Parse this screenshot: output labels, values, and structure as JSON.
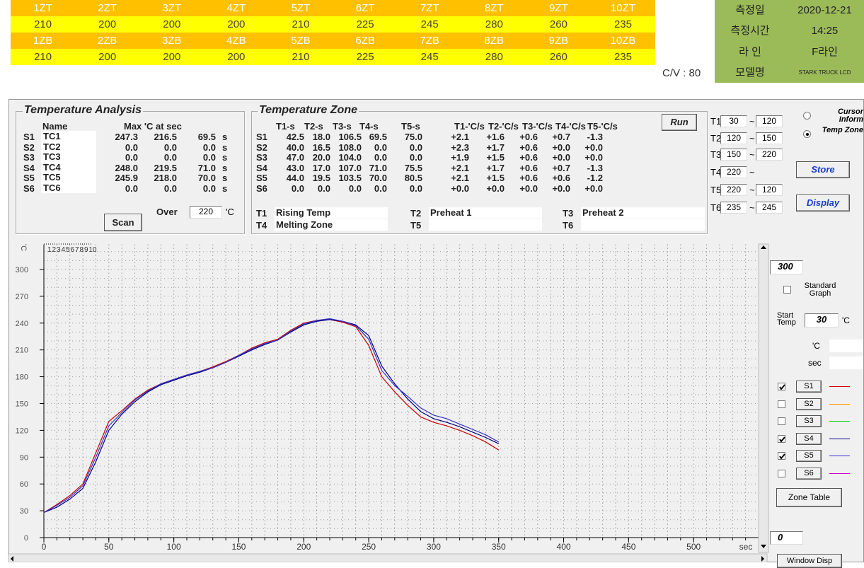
{
  "zone_table": {
    "rows": [
      [
        "1ZT",
        "2ZT",
        "3ZT",
        "4ZT",
        "5ZT",
        "6ZT",
        "7ZT",
        "8ZT",
        "9ZT",
        "10ZT"
      ],
      [
        210,
        200,
        200,
        200,
        210,
        225,
        245,
        280,
        260,
        235
      ],
      [
        "1ZB",
        "2ZB",
        "3ZB",
        "4ZB",
        "5ZB",
        "6ZB",
        "7ZB",
        "8ZB",
        "9ZB",
        "10ZB"
      ],
      [
        210,
        200,
        200,
        200,
        210,
        225,
        245,
        280,
        260,
        235
      ]
    ],
    "cv_label": "C/V : 80"
  },
  "info": [
    [
      "측정일",
      "2020-12-21"
    ],
    [
      "측정시간",
      "14:25"
    ],
    [
      "라 인",
      "F라인"
    ],
    [
      "모델명",
      "STARK TRUCK LCD"
    ]
  ],
  "analysis": {
    "title": "Temperature Analysis",
    "headers": [
      "Name",
      "Max 'C at sec"
    ],
    "rows": [
      [
        "S1",
        "TC1",
        "247.3",
        "216.5",
        "69.5"
      ],
      [
        "S2",
        "TC2",
        "0.0",
        "0.0",
        "0.0"
      ],
      [
        "S3",
        "TC3",
        "0.0",
        "0.0",
        "0.0"
      ],
      [
        "S4",
        "TC4",
        "248.0",
        "219.5",
        "71.0"
      ],
      [
        "S5",
        "TC5",
        "245.9",
        "218.0",
        "70.0"
      ],
      [
        "S6",
        "TC6",
        "0.0",
        "0.0",
        "0.0"
      ]
    ],
    "sec_unit": "s",
    "scan_button": "Scan",
    "over_label": "Over",
    "over_value": "220",
    "over_unit": "'C"
  },
  "zone": {
    "title": "Temperature Zone",
    "headers": [
      "T1-s",
      "T2-s",
      "T3-s",
      "T4-s",
      "T5-s",
      "T1-'C/s",
      "T2-'C/s",
      "T3-'C/s",
      "T4-'C/s",
      "T5-'C/s"
    ],
    "rows": [
      [
        "S1",
        "42.5",
        "18.0",
        "106.5",
        "69.5",
        "75.0",
        "+2.1",
        "+1.6",
        "+0.6",
        "+0.7",
        "-1.3"
      ],
      [
        "S2",
        "40.0",
        "16.5",
        "108.0",
        "0.0",
        "0.0",
        "+2.3",
        "+1.7",
        "+0.6",
        "+0.0",
        "+0.0"
      ],
      [
        "S3",
        "47.0",
        "20.0",
        "104.0",
        "0.0",
        "0.0",
        "+1.9",
        "+1.5",
        "+0.6",
        "+0.0",
        "+0.0"
      ],
      [
        "S4",
        "43.0",
        "17.0",
        "107.0",
        "71.0",
        "75.5",
        "+2.1",
        "+1.7",
        "+0.6",
        "+0.7",
        "-1.3"
      ],
      [
        "S5",
        "44.0",
        "19.5",
        "103.5",
        "70.0",
        "80.5",
        "+2.1",
        "+1.5",
        "+0.6",
        "+0.6",
        "-1.2"
      ],
      [
        "S6",
        "0.0",
        "0.0",
        "0.0",
        "0.0",
        "0.0",
        "+0.0",
        "+0.0",
        "+0.0",
        "+0.0",
        "+0.0"
      ]
    ],
    "names": [
      [
        "T1",
        "Rising Temp"
      ],
      [
        "T2",
        "Preheat 1"
      ],
      [
        "T3",
        "Preheat 2"
      ],
      [
        "T4",
        "Melting Zone"
      ],
      [
        "T5"
      ],
      [
        "T6"
      ]
    ],
    "run_button": "Run"
  },
  "ranges": {
    "sep": "~",
    "rows": [
      [
        "T1",
        "30",
        "120"
      ],
      [
        "T2",
        "120",
        "150"
      ],
      [
        "T3",
        "150",
        "220"
      ],
      [
        "T4",
        "220"
      ],
      [
        "T5",
        "220",
        "120"
      ],
      [
        "T6",
        "235",
        "245"
      ]
    ]
  },
  "radios": [
    {
      "label": "Cursor Inform",
      "checked": false
    },
    {
      "label": "Temp Zone",
      "checked": true
    }
  ],
  "buttons": {
    "store": "Store",
    "display": "Display",
    "zone_table": "Zone Table",
    "window": "Window Disp"
  },
  "side": {
    "max_value": "300",
    "standard_graph": "Standard Graph",
    "start_temp_label": "Start Temp",
    "start_temp": "30",
    "start_unit": "'C",
    "cursor_c": "'C",
    "cursor_sec": "sec",
    "min_value": "0"
  },
  "chart_data": {
    "type": "line",
    "x_label": "sec",
    "y_label": "'C",
    "zone_markers": [
      "1",
      "2",
      "3",
      "4",
      "5",
      "6",
      "7",
      "8",
      "9",
      "10"
    ],
    "x": [
      0,
      10,
      20,
      30,
      40,
      50,
      60,
      70,
      80,
      90,
      100,
      110,
      120,
      130,
      140,
      150,
      160,
      170,
      180,
      190,
      200,
      210,
      220,
      230,
      240,
      250,
      260,
      270,
      280,
      290,
      300,
      310,
      320,
      330,
      340,
      350
    ],
    "series": [
      {
        "name": "S1",
        "color": "#cc0000",
        "visible": true,
        "values": [
          28,
          37,
          47,
          60,
          95,
          130,
          142,
          155,
          165,
          172,
          177,
          182,
          186,
          191,
          197,
          204,
          212,
          218,
          222,
          232,
          240,
          243,
          244,
          241,
          236,
          215,
          180,
          163,
          148,
          135,
          129,
          125,
          120,
          114,
          107,
          98
        ]
      },
      {
        "name": "S2",
        "color": "#ff9900",
        "visible": false
      },
      {
        "name": "S3",
        "color": "#00cc00",
        "visible": false
      },
      {
        "name": "S4",
        "color": "#000080",
        "visible": true,
        "values": [
          28,
          34,
          43,
          55,
          85,
          120,
          138,
          152,
          163,
          171,
          176,
          181,
          185,
          190,
          196,
          203,
          210,
          216,
          221,
          230,
          238,
          242,
          244,
          242,
          238,
          226,
          192,
          172,
          155,
          141,
          133,
          129,
          124,
          118,
          112,
          105
        ]
      },
      {
        "name": "S5",
        "color": "#3333cc",
        "visible": true,
        "values": [
          28,
          36,
          45,
          58,
          90,
          125,
          140,
          154,
          164,
          172,
          177,
          182,
          186,
          190,
          196,
          204,
          211,
          217,
          221,
          231,
          239,
          243,
          245,
          242,
          237,
          222,
          187,
          170,
          158,
          145,
          137,
          133,
          127,
          121,
          115,
          107
        ]
      },
      {
        "name": "S6",
        "color": "#cc00cc",
        "visible": false
      }
    ],
    "xlim": [
      0,
      550
    ],
    "ylim": [
      0,
      328
    ],
    "xticks": [
      0,
      50,
      100,
      150,
      200,
      250,
      300,
      350,
      400,
      450,
      500
    ],
    "yticks": [
      0,
      30,
      60,
      90,
      120,
      150,
      180,
      210,
      240,
      270,
      300
    ],
    "grid": true
  }
}
